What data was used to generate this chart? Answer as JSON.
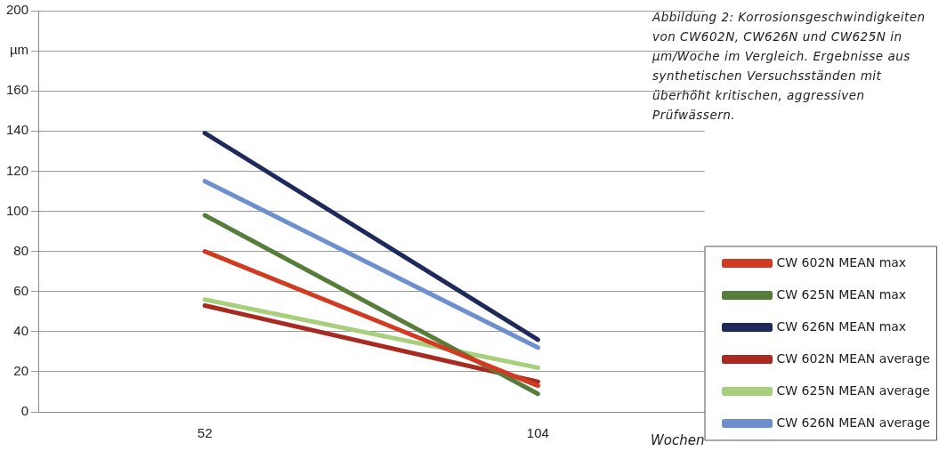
{
  "chart_data": {
    "type": "line",
    "title": "Abbildung 2: Korrosionsgeschwindigkeiten von CW602N, CW626N und CW625N in µm/Woche im Vergleich. Ergebnisse aus synthetischen Versuchsständen mit überhöht kritischen, aggressiven Prüfwässern.",
    "xlabel": "Wochen",
    "categories": [
      "52",
      "104"
    ],
    "series": [
      {
        "name": "CW 602N MEAN max",
        "color": "#d13b22",
        "values": [
          80,
          13
        ]
      },
      {
        "name": "CW 625N MEAN max",
        "color": "#567d3a",
        "values": [
          98,
          9
        ]
      },
      {
        "name": "CW 626N MEAN max",
        "color": "#1f2a5c",
        "values": [
          139,
          36
        ]
      },
      {
        "name": "CW 602N MEAN average",
        "color": "#a82a20",
        "values": [
          53,
          15
        ]
      },
      {
        "name": "CW 625N MEAN average",
        "color": "#a8cf7c",
        "values": [
          56,
          22
        ]
      },
      {
        "name": "CW 626N MEAN average",
        "color": "#6d8fcf",
        "values": [
          115,
          32
        ]
      }
    ],
    "ylim": [
      0,
      200
    ],
    "yticks": [
      0,
      20,
      40,
      60,
      80,
      100,
      120,
      140,
      160,
      {
        "value": 180,
        "label": "µm"
      },
      200
    ],
    "grid": "y",
    "legend": "right",
    "marker": "none",
    "line_style": "solid"
  }
}
